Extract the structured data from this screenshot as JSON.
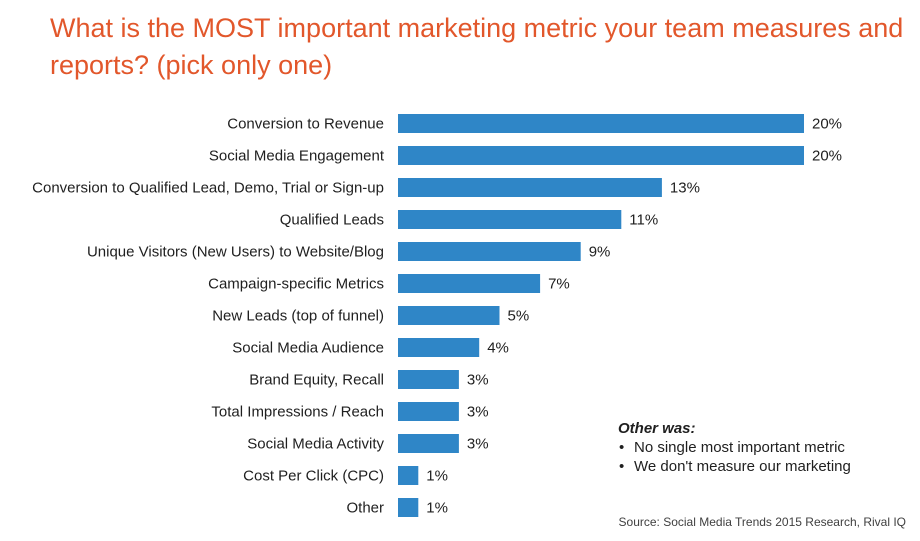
{
  "title": "What is the MOST important marketing metric your team measures and reports? (pick only one)",
  "chart_data": {
    "type": "bar",
    "orientation": "horizontal",
    "categories": [
      "Conversion to Revenue",
      "Social Media Engagement",
      "Conversion to Qualified Lead, Demo, Trial or Sign-up",
      "Qualified Leads",
      "Unique Visitors (New Users) to Website/Blog",
      "Campaign-specific Metrics",
      "New Leads (top of funnel)",
      "Social Media Audience",
      "Brand Equity, Recall",
      "Total Impressions / Reach",
      "Social Media Activity",
      "Cost Per Click (CPC)",
      "Other"
    ],
    "values": [
      20,
      20,
      13,
      11,
      9,
      7,
      5,
      4,
      3,
      3,
      3,
      1,
      1
    ],
    "value_labels": [
      "20%",
      "20%",
      "13%",
      "11%",
      "9%",
      "7%",
      "5%",
      "4%",
      "3%",
      "3%",
      "3%",
      "1%",
      "1%"
    ],
    "unit": "%",
    "xlim": [
      0,
      20
    ],
    "grid": false,
    "legend": "none",
    "bar_color": "#2f86c7"
  },
  "note": {
    "title": "Other was:",
    "items": [
      "No single most important metric",
      "We don't measure our marketing"
    ]
  },
  "source": "Source: Social Media Trends 2015 Research, Rival IQ",
  "colors": {
    "title": "#e2572b",
    "bar": "#2f86c7",
    "text": "#1f1f1f"
  }
}
